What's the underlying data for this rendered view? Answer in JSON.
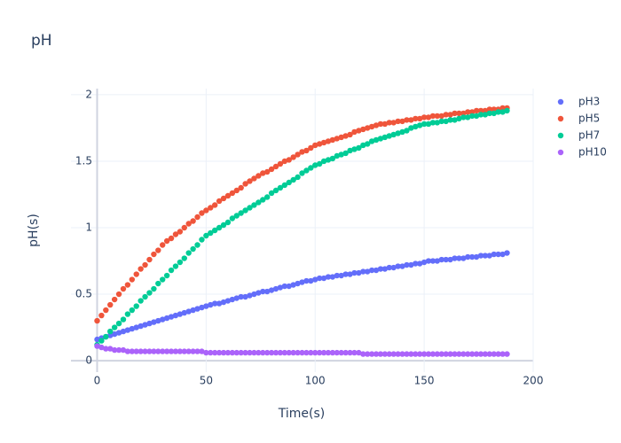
{
  "chart_data": {
    "type": "scatter",
    "title": "pH",
    "xlabel": "Time(s)",
    "ylabel": "pH(s)",
    "x": [
      0,
      2,
      4,
      6,
      8,
      10,
      12,
      14,
      16,
      18,
      20,
      22,
      24,
      26,
      28,
      30,
      32,
      34,
      36,
      38,
      40,
      42,
      44,
      46,
      48,
      50,
      52,
      54,
      56,
      58,
      60,
      62,
      64,
      66,
      68,
      70,
      72,
      74,
      76,
      78,
      80,
      82,
      84,
      86,
      88,
      90,
      92,
      94,
      96,
      98,
      100,
      102,
      104,
      106,
      108,
      110,
      112,
      114,
      116,
      118,
      120,
      122,
      124,
      126,
      128,
      130,
      132,
      134,
      136,
      138,
      140,
      142,
      144,
      146,
      148,
      150,
      152,
      154,
      156,
      158,
      160,
      162,
      164,
      166,
      168,
      170,
      172,
      174,
      176,
      178,
      180,
      182,
      184,
      186,
      188
    ],
    "series": [
      {
        "name": "pH3",
        "color": "#636efa",
        "values": [
          0.16,
          0.17,
          0.18,
          0.19,
          0.2,
          0.21,
          0.22,
          0.23,
          0.24,
          0.25,
          0.26,
          0.27,
          0.28,
          0.29,
          0.3,
          0.31,
          0.32,
          0.33,
          0.34,
          0.35,
          0.36,
          0.37,
          0.38,
          0.39,
          0.4,
          0.41,
          0.42,
          0.43,
          0.43,
          0.44,
          0.45,
          0.46,
          0.47,
          0.48,
          0.48,
          0.49,
          0.5,
          0.51,
          0.52,
          0.52,
          0.53,
          0.54,
          0.55,
          0.56,
          0.56,
          0.57,
          0.58,
          0.59,
          0.6,
          0.6,
          0.61,
          0.62,
          0.62,
          0.63,
          0.63,
          0.64,
          0.64,
          0.65,
          0.65,
          0.66,
          0.66,
          0.67,
          0.67,
          0.68,
          0.68,
          0.69,
          0.69,
          0.7,
          0.7,
          0.71,
          0.71,
          0.72,
          0.72,
          0.73,
          0.73,
          0.74,
          0.75,
          0.75,
          0.75,
          0.76,
          0.76,
          0.76,
          0.77,
          0.77,
          0.77,
          0.78,
          0.78,
          0.78,
          0.79,
          0.79,
          0.79,
          0.8,
          0.8,
          0.8,
          0.81
        ]
      },
      {
        "name": "pH5",
        "color": "#ef553b",
        "values": [
          0.3,
          0.34,
          0.38,
          0.42,
          0.46,
          0.5,
          0.54,
          0.57,
          0.61,
          0.65,
          0.69,
          0.72,
          0.76,
          0.8,
          0.83,
          0.87,
          0.9,
          0.92,
          0.95,
          0.97,
          1.0,
          1.03,
          1.05,
          1.08,
          1.11,
          1.13,
          1.15,
          1.17,
          1.2,
          1.22,
          1.24,
          1.26,
          1.28,
          1.3,
          1.33,
          1.35,
          1.37,
          1.39,
          1.41,
          1.42,
          1.44,
          1.46,
          1.48,
          1.5,
          1.51,
          1.53,
          1.55,
          1.57,
          1.58,
          1.6,
          1.62,
          1.63,
          1.64,
          1.65,
          1.66,
          1.67,
          1.68,
          1.69,
          1.7,
          1.72,
          1.73,
          1.74,
          1.75,
          1.76,
          1.77,
          1.78,
          1.78,
          1.79,
          1.79,
          1.8,
          1.8,
          1.81,
          1.81,
          1.82,
          1.82,
          1.83,
          1.83,
          1.84,
          1.84,
          1.84,
          1.85,
          1.85,
          1.86,
          1.86,
          1.86,
          1.87,
          1.87,
          1.88,
          1.88,
          1.88,
          1.89,
          1.89,
          1.89,
          1.9,
          1.9
        ]
      },
      {
        "name": "pH7",
        "color": "#00cc96",
        "values": [
          0.12,
          0.15,
          0.18,
          0.22,
          0.25,
          0.28,
          0.31,
          0.35,
          0.38,
          0.41,
          0.45,
          0.48,
          0.51,
          0.54,
          0.58,
          0.61,
          0.64,
          0.68,
          0.71,
          0.74,
          0.77,
          0.81,
          0.84,
          0.87,
          0.91,
          0.94,
          0.96,
          0.98,
          1.0,
          1.02,
          1.04,
          1.07,
          1.09,
          1.11,
          1.13,
          1.15,
          1.17,
          1.19,
          1.21,
          1.23,
          1.26,
          1.28,
          1.3,
          1.32,
          1.34,
          1.36,
          1.38,
          1.41,
          1.43,
          1.45,
          1.47,
          1.48,
          1.5,
          1.51,
          1.52,
          1.54,
          1.55,
          1.56,
          1.58,
          1.59,
          1.6,
          1.62,
          1.63,
          1.65,
          1.66,
          1.67,
          1.68,
          1.69,
          1.7,
          1.71,
          1.72,
          1.73,
          1.75,
          1.76,
          1.77,
          1.78,
          1.78,
          1.79,
          1.79,
          1.8,
          1.8,
          1.81,
          1.81,
          1.82,
          1.83,
          1.83,
          1.84,
          1.84,
          1.85,
          1.85,
          1.86,
          1.86,
          1.87,
          1.87,
          1.88
        ]
      },
      {
        "name": "pH10",
        "color": "#ab63fa",
        "values": [
          0.11,
          0.1,
          0.09,
          0.09,
          0.08,
          0.08,
          0.08,
          0.07,
          0.07,
          0.07,
          0.07,
          0.07,
          0.07,
          0.07,
          0.07,
          0.07,
          0.07,
          0.07,
          0.07,
          0.07,
          0.07,
          0.07,
          0.07,
          0.07,
          0.07,
          0.06,
          0.06,
          0.06,
          0.06,
          0.06,
          0.06,
          0.06,
          0.06,
          0.06,
          0.06,
          0.06,
          0.06,
          0.06,
          0.06,
          0.06,
          0.06,
          0.06,
          0.06,
          0.06,
          0.06,
          0.06,
          0.06,
          0.06,
          0.06,
          0.06,
          0.06,
          0.06,
          0.06,
          0.06,
          0.06,
          0.06,
          0.06,
          0.06,
          0.06,
          0.06,
          0.06,
          0.05,
          0.05,
          0.05,
          0.05,
          0.05,
          0.05,
          0.05,
          0.05,
          0.05,
          0.05,
          0.05,
          0.05,
          0.05,
          0.05,
          0.05,
          0.05,
          0.05,
          0.05,
          0.05,
          0.05,
          0.05,
          0.05,
          0.05,
          0.05,
          0.05,
          0.05,
          0.05,
          0.05,
          0.05,
          0.05,
          0.05,
          0.05,
          0.05,
          0.05
        ]
      }
    ],
    "xlim": [
      -12,
      200
    ],
    "ylim": [
      -0.086,
      2.046
    ],
    "xticks": [
      0,
      50,
      100,
      150,
      200
    ],
    "yticks": [
      0,
      0.5,
      1,
      1.5,
      2
    ],
    "grid": true,
    "legend": "right"
  }
}
